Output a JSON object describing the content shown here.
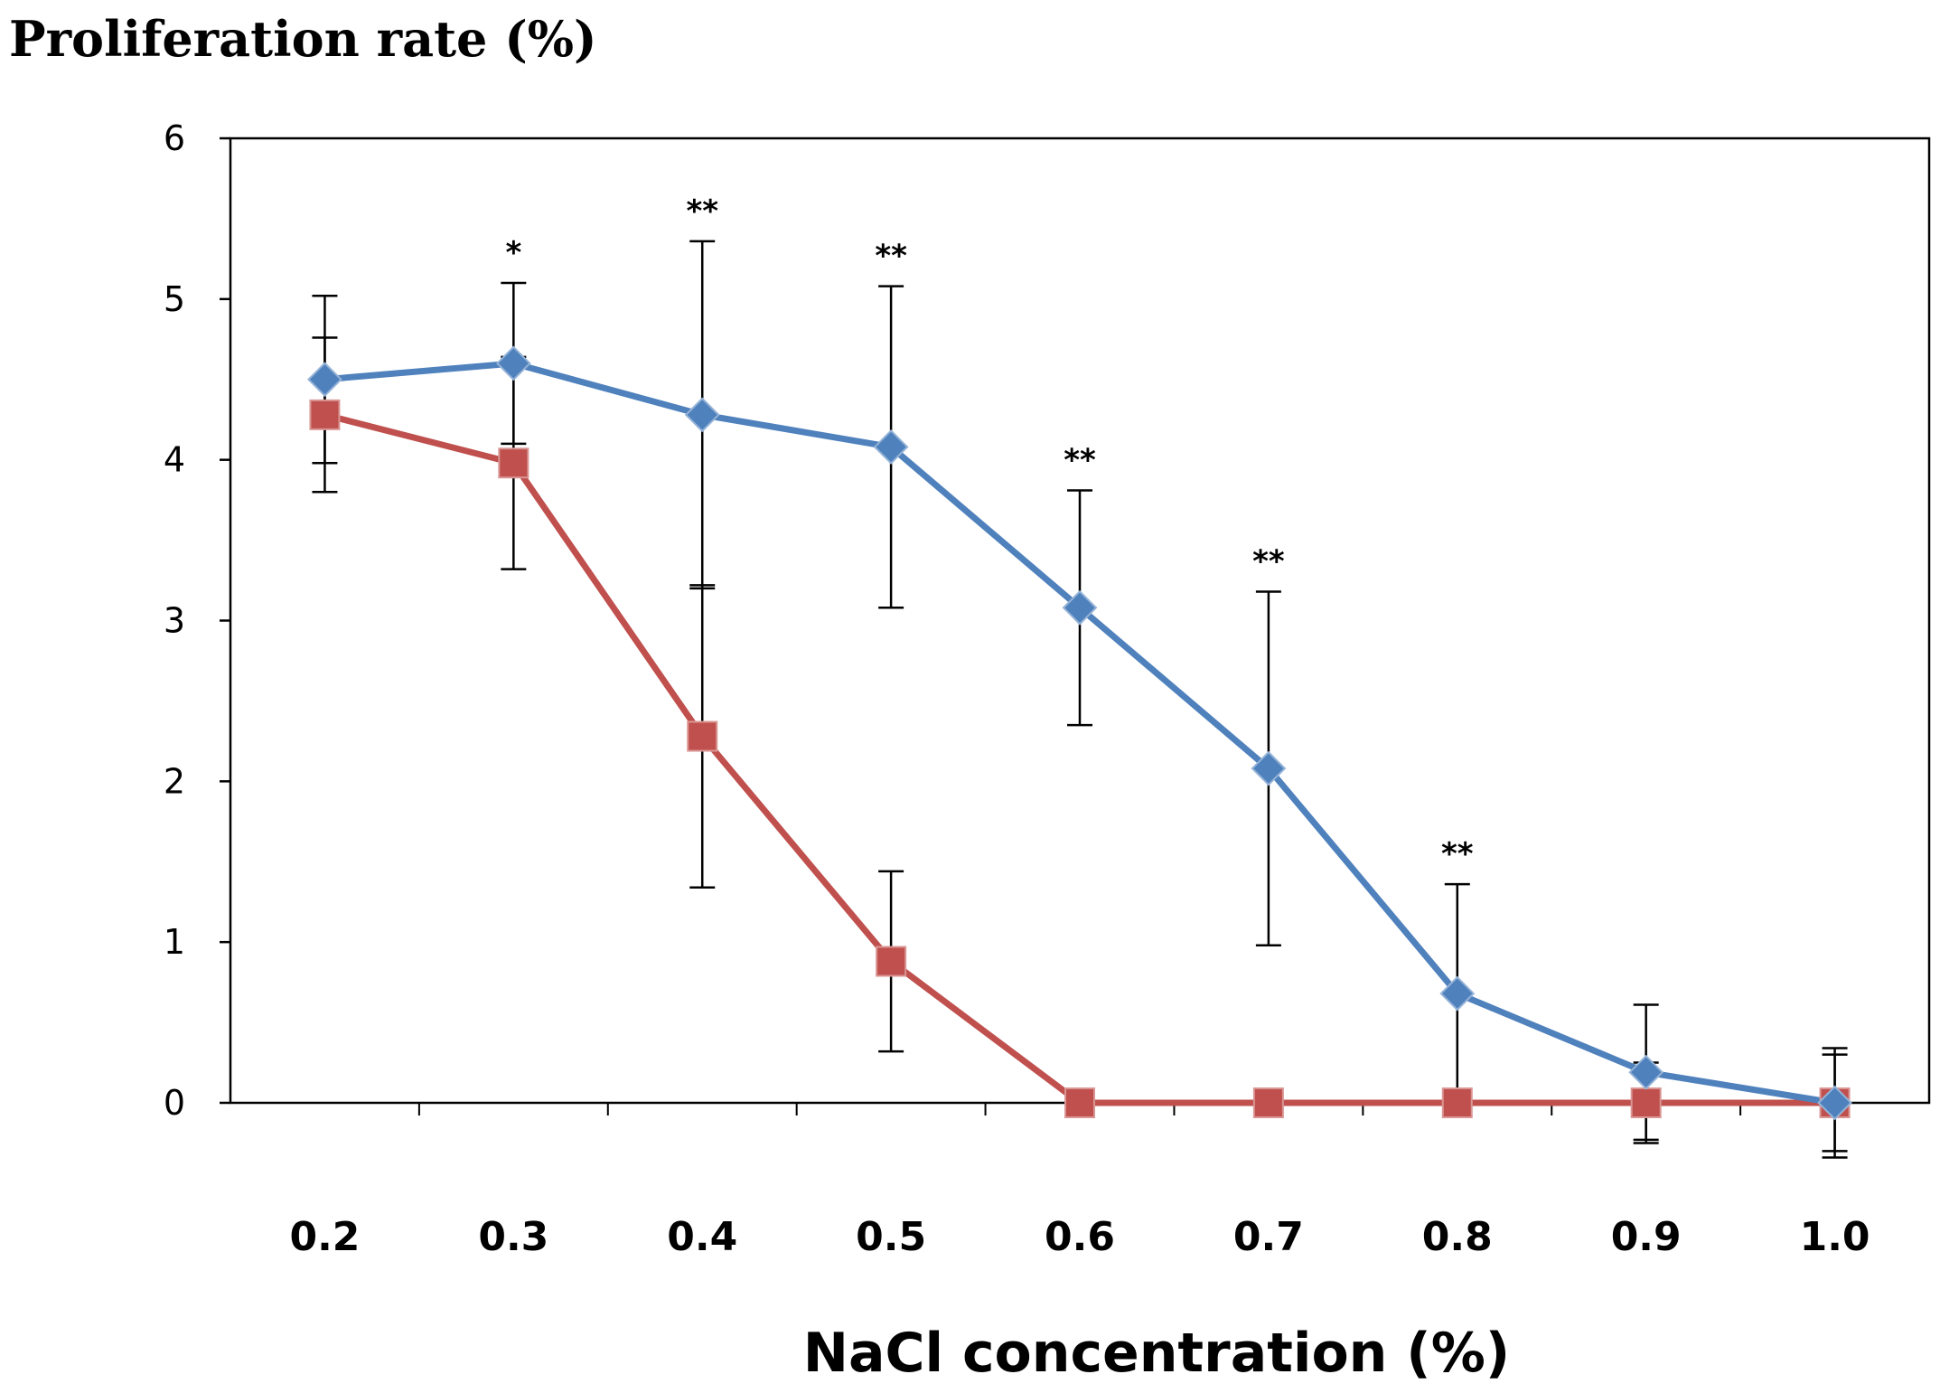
{
  "chart_data": {
    "type": "line",
    "title": "",
    "ylabel": "Proliferation rate (%)",
    "xlabel": "NaCl concentration (%)",
    "categories": [
      "0.2",
      "0.3",
      "0.4",
      "0.5",
      "0.6",
      "0.7",
      "0.8",
      "0.9",
      "1.0"
    ],
    "ylim": [
      0,
      6
    ],
    "yticks": [
      "0",
      "1",
      "2",
      "3",
      "4",
      "5",
      "6"
    ],
    "grid": false,
    "legend": "none",
    "series": [
      {
        "name": "blue-series",
        "color": "#4F81BD",
        "marker": "diamond",
        "values": [
          4.5,
          4.6,
          4.28,
          4.08,
          3.08,
          2.08,
          0.68,
          0.19,
          0.0
        ],
        "error": [
          0.52,
          0.5,
          1.08,
          1.0,
          0.73,
          1.1,
          0.68,
          0.42,
          0.3
        ]
      },
      {
        "name": "red-series",
        "color": "#C0504D",
        "marker": "square",
        "values": [
          4.28,
          3.98,
          2.28,
          0.88,
          0.0,
          0.0,
          0.0,
          0.0,
          0.0
        ],
        "error": [
          0.48,
          0.66,
          0.94,
          0.56,
          0.0,
          0.0,
          0.0,
          0.25,
          0.34
        ]
      }
    ],
    "annotations": [
      {
        "index": 1,
        "text": "*"
      },
      {
        "index": 2,
        "text": "**"
      },
      {
        "index": 3,
        "text": "**"
      },
      {
        "index": 4,
        "text": "**"
      },
      {
        "index": 5,
        "text": "**"
      },
      {
        "index": 6,
        "text": "**"
      }
    ]
  }
}
